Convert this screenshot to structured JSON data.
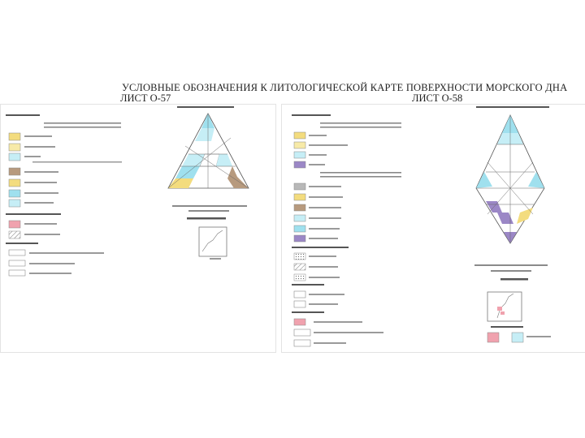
{
  "document": {
    "title": "УСЛОВНЫЕ ОБОЗНАЧЕНИЯ К ЛИТОЛОГИЧЕСКОЙ КАРТЕ ПОВЕРХНОСТИ МОРСКОГО ДНА",
    "sheet_left_label": "ЛИСТ О-57",
    "sheet_right_label": "ЛИСТ О-58"
  },
  "colors": {
    "yellow": "#f3dc7e",
    "light_yellow": "#f7eaa8",
    "cyan": "#9fe0ee",
    "light_cyan": "#c6eef6",
    "brown": "#b79a7e",
    "gray": "#b8b8b8",
    "purple": "#9b87c6",
    "pink": "#f0a2ae",
    "blue": "#3355cc",
    "tan": "#d8c08a"
  }
}
